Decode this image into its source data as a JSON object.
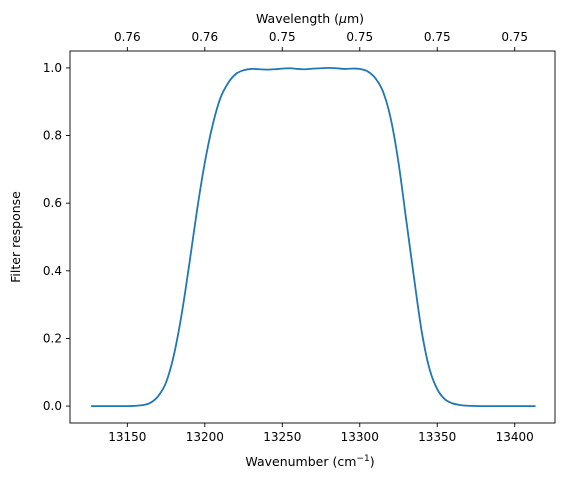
{
  "chart_data": {
    "type": "line",
    "xlabel_main": "Wavenumber (cm",
    "xlabel_sup": "−1",
    "xlabel_close": ")",
    "ylabel": "Filter response",
    "top_xlabel_prefix": "Wavelength (",
    "top_xlabel_mu": "μ",
    "top_xlabel_suffix": "m)",
    "xlim": [
      13113,
      13426
    ],
    "ylim": [
      -0.05,
      1.05
    ],
    "x_ticks": [
      {
        "value": 13150,
        "label": "13150"
      },
      {
        "value": 13200,
        "label": "13200"
      },
      {
        "value": 13250,
        "label": "13250"
      },
      {
        "value": 13300,
        "label": "13300"
      },
      {
        "value": 13350,
        "label": "13350"
      },
      {
        "value": 13400,
        "label": "13400"
      }
    ],
    "y_ticks": [
      {
        "value": 0.0,
        "label": "0.0"
      },
      {
        "value": 0.2,
        "label": "0.2"
      },
      {
        "value": 0.4,
        "label": "0.4"
      },
      {
        "value": 0.6,
        "label": "0.6"
      },
      {
        "value": 0.8,
        "label": "0.8"
      },
      {
        "value": 1.0,
        "label": "1.0"
      }
    ],
    "top_ticks": [
      {
        "value": 13150,
        "label": "0.76"
      },
      {
        "value": 13200,
        "label": "0.76"
      },
      {
        "value": 13250,
        "label": "0.75"
      },
      {
        "value": 13300,
        "label": "0.75"
      },
      {
        "value": 13350,
        "label": "0.75"
      },
      {
        "value": 13400,
        "label": "0.75"
      }
    ],
    "line_color": "#1f77b4",
    "grid": false,
    "series": [
      {
        "x": [
          13127,
          13140,
          13150,
          13160,
          13165,
          13170,
          13175,
          13180,
          13185,
          13190,
          13195,
          13200,
          13205,
          13210,
          13215,
          13220,
          13225,
          13230,
          13235,
          13240,
          13245,
          13250,
          13255,
          13260,
          13265,
          13270,
          13275,
          13280,
          13285,
          13290,
          13295,
          13300,
          13305,
          13310,
          13315,
          13320,
          13325,
          13330,
          13335,
          13340,
          13345,
          13350,
          13355,
          13360,
          13365,
          13370,
          13380,
          13390,
          13413
        ],
        "y": [
          0.0,
          0.0,
          0.0,
          0.003,
          0.01,
          0.03,
          0.07,
          0.15,
          0.27,
          0.42,
          0.58,
          0.72,
          0.83,
          0.91,
          0.955,
          0.982,
          0.993,
          0.997,
          0.996,
          0.995,
          0.996,
          0.998,
          0.999,
          0.997,
          0.996,
          0.998,
          0.999,
          1.0,
          0.999,
          0.997,
          0.998,
          0.997,
          0.99,
          0.97,
          0.93,
          0.85,
          0.72,
          0.55,
          0.38,
          0.22,
          0.11,
          0.05,
          0.02,
          0.008,
          0.003,
          0.001,
          0.0,
          0.0,
          0.0
        ]
      }
    ]
  }
}
